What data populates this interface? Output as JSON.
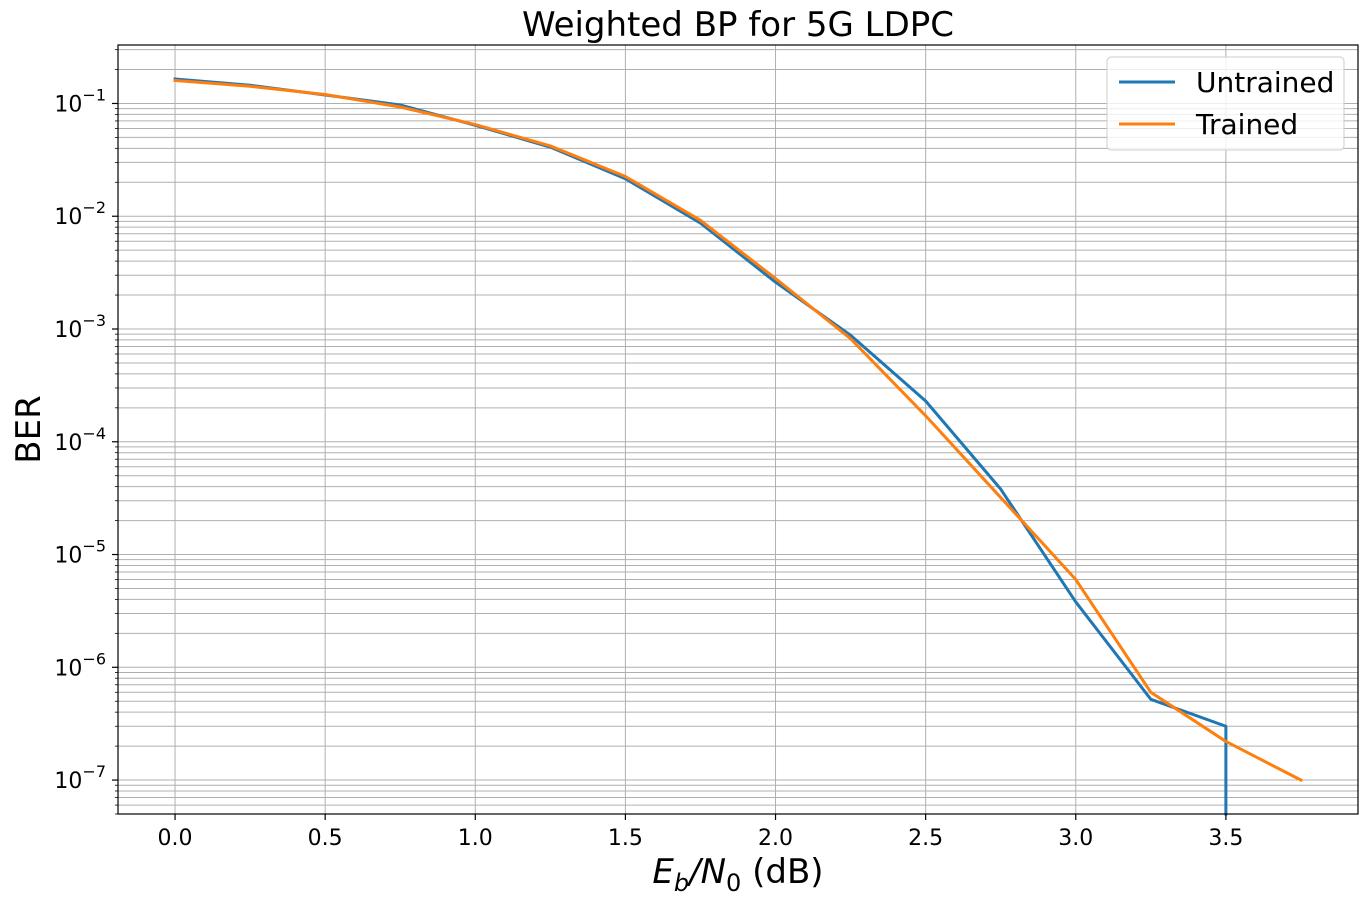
{
  "chart_data": {
    "type": "line",
    "title": "Weighted BP for 5G LDPC",
    "xlabel_main": "E",
    "xlabel_sub1": "b",
    "xlabel_slash": "/N",
    "xlabel_sub2": "0",
    "xlabel_unit": " (dB)",
    "ylabel": "BER",
    "yscale": "log",
    "grid": true,
    "grid_minor": true,
    "legend_position": "top-right",
    "xlim": [
      -0.19,
      3.94
    ],
    "ylim": [
      5e-08,
      0.33
    ],
    "xticks": [
      0.0,
      0.5,
      1.0,
      1.5,
      2.0,
      2.5,
      3.0,
      3.5
    ],
    "xtick_labels": [
      "0.0",
      "0.5",
      "1.0",
      "1.5",
      "2.0",
      "2.5",
      "3.0",
      "3.5"
    ],
    "yticks": [
      {
        "value": 0.1,
        "base": "10",
        "exp": "−1"
      },
      {
        "value": 0.01,
        "base": "10",
        "exp": "−2"
      },
      {
        "value": 0.001,
        "base": "10",
        "exp": "−3"
      },
      {
        "value": 0.0001,
        "base": "10",
        "exp": "−4"
      },
      {
        "value": 1e-05,
        "base": "10",
        "exp": "−5"
      },
      {
        "value": 1e-06,
        "base": "10",
        "exp": "−6"
      },
      {
        "value": 1e-07,
        "base": "10",
        "exp": "−7"
      }
    ],
    "series": [
      {
        "name": "Untrained",
        "color": "#1f77b4",
        "x": [
          0.0,
          0.25,
          0.5,
          0.75,
          1.0,
          1.25,
          1.5,
          1.75,
          2.0,
          2.25,
          2.5,
          2.75,
          3.0,
          3.25,
          3.5,
          3.5
        ],
        "y": [
          0.165,
          0.145,
          0.119,
          0.097,
          0.064,
          0.041,
          0.0215,
          0.0087,
          0.0026,
          0.00088,
          0.00023,
          3.8e-05,
          3.8e-06,
          5.2e-07,
          3e-07,
          5e-08
        ]
      },
      {
        "name": "Trained",
        "color": "#ff7f0e",
        "x": [
          0.0,
          0.25,
          0.5,
          0.75,
          1.0,
          1.25,
          1.5,
          1.75,
          2.0,
          2.25,
          2.5,
          2.75,
          3.0,
          3.25,
          3.5,
          3.75
        ],
        "y": [
          0.16,
          0.142,
          0.12,
          0.093,
          0.065,
          0.042,
          0.0225,
          0.0092,
          0.0028,
          0.00082,
          0.00017,
          3.2e-05,
          6e-06,
          6e-07,
          2.2e-07,
          1e-07
        ]
      }
    ]
  }
}
